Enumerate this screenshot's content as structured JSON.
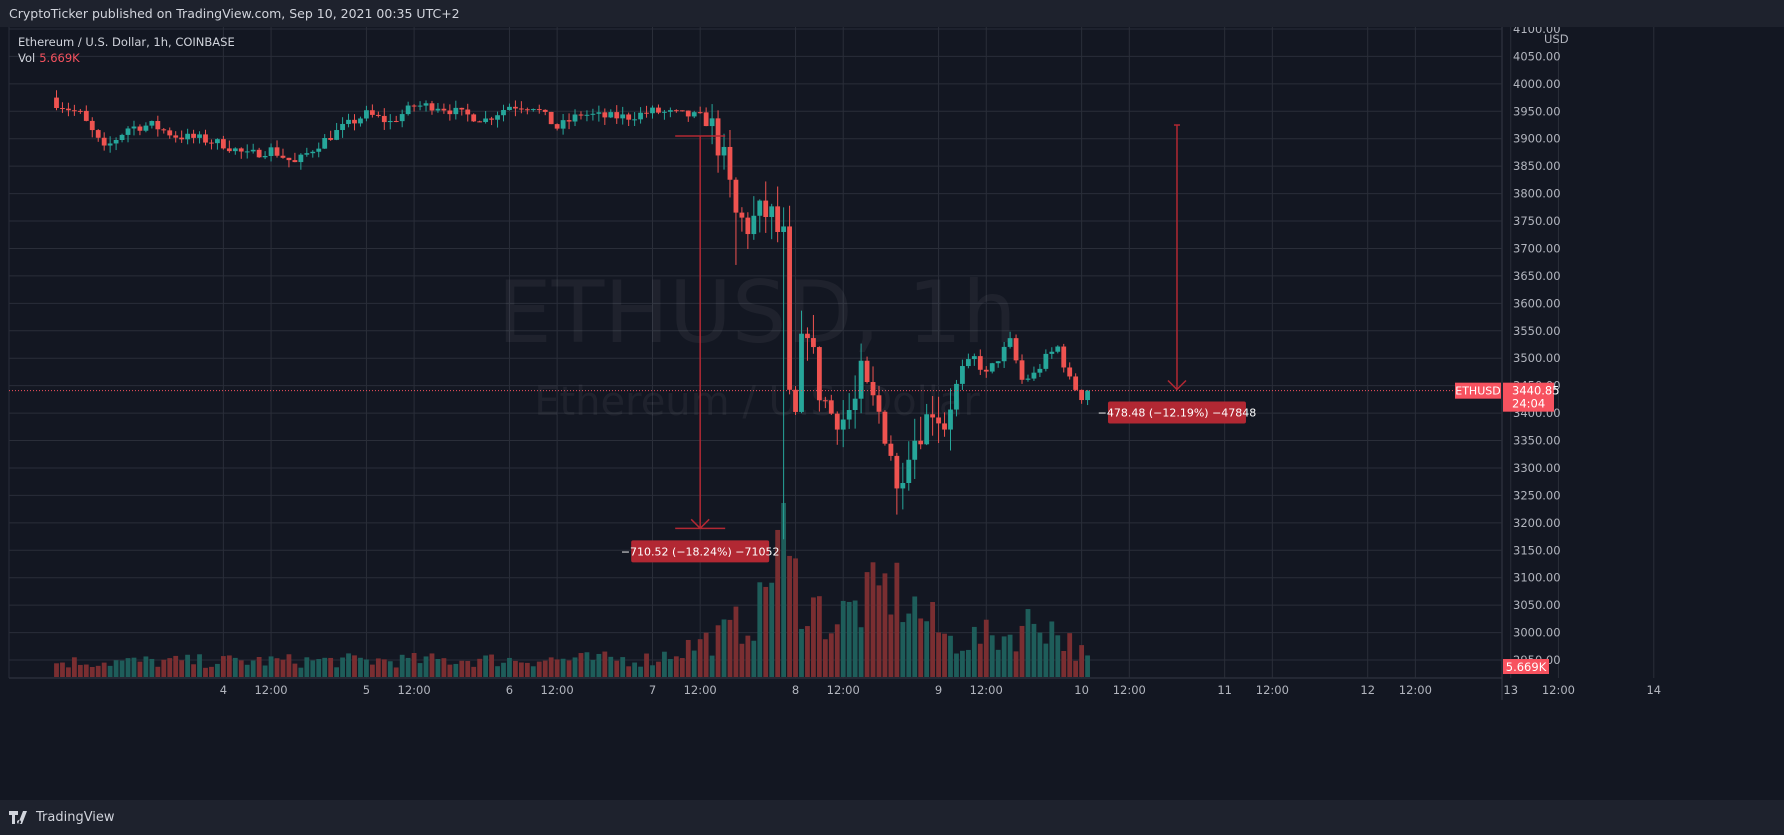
{
  "header": {
    "published": "CryptoTicker published on TradingView.com, Sep 10, 2021 00:35 UTC+2"
  },
  "legend": {
    "symbol": "Ethereum / U.S. Dollar, 1h, COINBASE",
    "vol_label": "Vol",
    "vol_value": "5.669K"
  },
  "watermark": {
    "line1": "ETHUSD, 1h",
    "line2": "Ethereum / U.S. Dollar"
  },
  "footer": {
    "brand": "TradingView"
  },
  "colors": {
    "up": "#26a69a",
    "down": "#ef5350",
    "up_vol": "#1e5d5a",
    "down_vol": "#7a2e31",
    "measure": "#b22833",
    "price_label": "#f7525f",
    "grid": "#2a2e39",
    "text": "#d1d4dc"
  },
  "chart_data": {
    "type": "candlestick",
    "title": "Ethereum / U.S. Dollar, 1h, COINBASE",
    "symbol": "ETHUSD",
    "price_axis": {
      "unit": "USD",
      "ylim": [
        2920,
        4130
      ],
      "ticks": [
        "4100.00",
        "4050.00",
        "4000.00",
        "3950.00",
        "3900.00",
        "3850.00",
        "3800.00",
        "3750.00",
        "3700.00",
        "3650.00",
        "3600.00",
        "3550.00",
        "3500.00",
        "3450.00",
        "3400.00",
        "3350.00",
        "3300.00",
        "3250.00",
        "3200.00",
        "3150.00",
        "3100.00",
        "3050.00",
        "3000.00",
        "2950.00"
      ]
    },
    "time_axis": {
      "ticks": [
        {
          "label": "4",
          "h": 28
        },
        {
          "label": "12:00",
          "h": 36
        },
        {
          "label": "5",
          "h": 52
        },
        {
          "label": "12:00",
          "h": 60
        },
        {
          "label": "6",
          "h": 76
        },
        {
          "label": "12:00",
          "h": 84
        },
        {
          "label": "7",
          "h": 100
        },
        {
          "label": "12:00",
          "h": 108
        },
        {
          "label": "8",
          "h": 124
        },
        {
          "label": "12:00",
          "h": 132
        },
        {
          "label": "9",
          "h": 148
        },
        {
          "label": "12:00",
          "h": 156
        },
        {
          "label": "10",
          "h": 172
        },
        {
          "label": "12:00",
          "h": 180
        },
        {
          "label": "11",
          "h": 196
        },
        {
          "label": "12:00",
          "h": 204
        },
        {
          "label": "12",
          "h": 220
        },
        {
          "label": "12:00",
          "h": 228
        },
        {
          "label": "13",
          "h": 244
        },
        {
          "label": "12:00",
          "h": 252
        },
        {
          "label": "14",
          "h": 268
        }
      ]
    },
    "last_price": {
      "value": 3440.85,
      "label": "3440.85",
      "countdown": "24:04",
      "symbol_label": "ETHUSD"
    },
    "volume_last_label": "5.669K",
    "anchors": [
      [
        0,
        3965
      ],
      [
        4,
        3945
      ],
      [
        8,
        3880
      ],
      [
        12,
        3920
      ],
      [
        16,
        3925
      ],
      [
        20,
        3905
      ],
      [
        24,
        3900
      ],
      [
        28,
        3890
      ],
      [
        32,
        3870
      ],
      [
        36,
        3880
      ],
      [
        40,
        3855
      ],
      [
        44,
        3890
      ],
      [
        48,
        3920
      ],
      [
        52,
        3945
      ],
      [
        56,
        3930
      ],
      [
        60,
        3960
      ],
      [
        64,
        3960
      ],
      [
        68,
        3945
      ],
      [
        72,
        3935
      ],
      [
        76,
        3960
      ],
      [
        80,
        3960
      ],
      [
        84,
        3920
      ],
      [
        88,
        3945
      ],
      [
        92,
        3940
      ],
      [
        96,
        3940
      ],
      [
        100,
        3950
      ],
      [
        104,
        3945
      ],
      [
        108,
        3940
      ],
      [
        110,
        3920
      ],
      [
        112,
        3860
      ],
      [
        114,
        3760
      ],
      [
        116,
        3740
      ],
      [
        118,
        3765
      ],
      [
        120,
        3760
      ],
      [
        121,
        3730
      ],
      [
        122,
        3720
      ],
      [
        123,
        3420
      ],
      [
        124,
        3390
      ],
      [
        125,
        3520
      ],
      [
        126,
        3560
      ],
      [
        128,
        3440
      ],
      [
        130,
        3400
      ],
      [
        132,
        3390
      ],
      [
        134,
        3420
      ],
      [
        135,
        3470
      ],
      [
        136,
        3440
      ],
      [
        138,
        3400
      ],
      [
        140,
        3330
      ],
      [
        141,
        3255
      ],
      [
        142,
        3300
      ],
      [
        143,
        3340
      ],
      [
        145,
        3370
      ],
      [
        147,
        3410
      ],
      [
        149,
        3380
      ],
      [
        150,
        3420
      ],
      [
        152,
        3480
      ],
      [
        154,
        3500
      ],
      [
        156,
        3470
      ],
      [
        158,
        3500
      ],
      [
        160,
        3530
      ],
      [
        162,
        3460
      ],
      [
        164,
        3470
      ],
      [
        166,
        3500
      ],
      [
        168,
        3520
      ],
      [
        170,
        3460
      ],
      [
        172,
        3430
      ],
      [
        173,
        3440.85
      ]
    ],
    "volume_anchors": [
      [
        0,
        25
      ],
      [
        60,
        28
      ],
      [
        100,
        30
      ],
      [
        112,
        70
      ],
      [
        118,
        110
      ],
      [
        121,
        240
      ],
      [
        123,
        170
      ],
      [
        126,
        130
      ],
      [
        130,
        90
      ],
      [
        140,
        150
      ],
      [
        150,
        60
      ],
      [
        160,
        70
      ],
      [
        165,
        100
      ],
      [
        173,
        30
      ]
    ],
    "measurements": [
      {
        "label": "−710.52 (−18.24%) −71052",
        "from_h": 108,
        "from_price": 3905,
        "to_price": 3190
      },
      {
        "label": "−478.48 (−12.19%) −47848",
        "from_h": 188,
        "from_price": 3925,
        "to_price": 3443
      }
    ]
  }
}
